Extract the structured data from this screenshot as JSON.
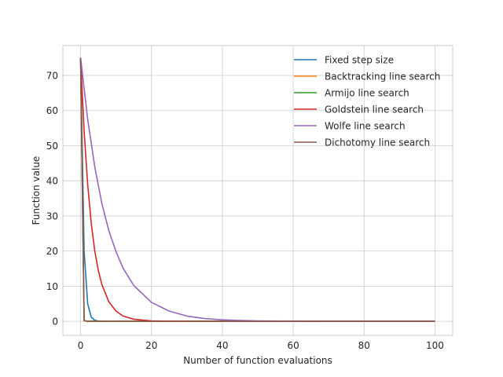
{
  "chart_data": {
    "type": "line",
    "title": "",
    "xlabel": "Number of function evaluations",
    "ylabel": "Function value",
    "xlim": [
      -5,
      105
    ],
    "ylim": [
      -4,
      78.5
    ],
    "xticks": [
      0,
      20,
      40,
      60,
      80,
      100
    ],
    "yticks": [
      0,
      10,
      20,
      30,
      40,
      50,
      60,
      70
    ],
    "grid": true,
    "legend_position": "top-right",
    "series": [
      {
        "name": "Fixed step size",
        "color": "#1f77b4",
        "x": [
          0,
          1,
          2,
          3,
          4,
          5,
          6,
          8,
          10,
          20,
          50,
          100
        ],
        "y": [
          75,
          20,
          5,
          1.2,
          0.3,
          0.1,
          0.03,
          0,
          0,
          0,
          0,
          0
        ]
      },
      {
        "name": "Backtracking line search",
        "color": "#ff7f0e",
        "x": [
          0,
          1,
          2,
          5,
          10,
          50,
          100
        ],
        "y": [
          75,
          0.2,
          0,
          0,
          0,
          0,
          0
        ]
      },
      {
        "name": "Armijo line search",
        "color": "#2ca02c",
        "x": [
          0,
          1,
          2,
          5,
          10,
          50,
          100
        ],
        "y": [
          75,
          0.2,
          0,
          0,
          0,
          0,
          0
        ]
      },
      {
        "name": "Goldstein line search",
        "color": "#d62728",
        "x": [
          0,
          1,
          2,
          3,
          4,
          5,
          6,
          8,
          10,
          12,
          15,
          20,
          25,
          30,
          40,
          50,
          60,
          80,
          100
        ],
        "y": [
          75,
          54,
          39,
          28,
          20,
          14.5,
          10.5,
          5.5,
          2.9,
          1.5,
          0.6,
          0.12,
          0.03,
          0,
          0,
          0,
          0,
          0,
          0
        ]
      },
      {
        "name": "Wolfe line search",
        "color": "#9467bd",
        "x": [
          0,
          2,
          4,
          6,
          8,
          10,
          12,
          15,
          20,
          25,
          30,
          35,
          40,
          45,
          50,
          60,
          70,
          80,
          90,
          100
        ],
        "y": [
          75,
          57.5,
          44,
          33.5,
          25.7,
          19.8,
          15.1,
          10.2,
          5.4,
          2.9,
          1.5,
          0.8,
          0.43,
          0.23,
          0.12,
          0.03,
          0,
          0,
          0,
          0
        ]
      },
      {
        "name": "Dichotomy line search",
        "color": "#8c564b",
        "x": [
          0,
          1,
          2,
          5,
          10,
          50,
          100
        ],
        "y": [
          75,
          0.2,
          0,
          0,
          0,
          0,
          0
        ]
      }
    ]
  }
}
